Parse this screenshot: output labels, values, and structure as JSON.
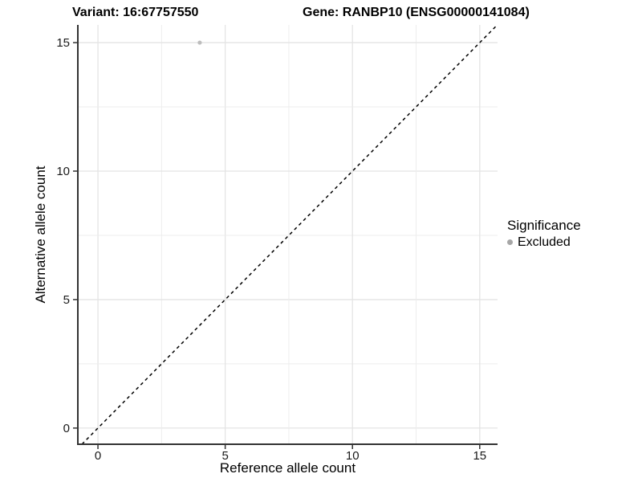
{
  "chart_data": {
    "type": "scatter",
    "title_left": "Variant: 16:67757550",
    "title_right": "Gene: RANBP10 (ENSG00000141084)",
    "xlabel": "Reference allele count",
    "ylabel": "Alternative allele count",
    "xlim": [
      -0.79,
      15.7
    ],
    "ylim": [
      -0.63,
      15.69
    ],
    "x_ticks": [
      0,
      5,
      10,
      15
    ],
    "y_ticks": [
      0,
      5,
      10,
      15
    ],
    "grid": {
      "on": true,
      "minor_step": 2.5,
      "major_step": 5,
      "min": 0,
      "max": 15
    },
    "points": [
      {
        "x": 4,
        "y": 15,
        "significance": "Excluded"
      }
    ],
    "identity_line": {
      "equation": "y = x",
      "style": "dashed"
    },
    "legend": {
      "title": "Significance",
      "position": "right",
      "items": [
        {
          "label": "Excluded",
          "color": "#a6a6a6"
        }
      ]
    },
    "colors": {
      "point": "#bdbdbd",
      "grid_major": "#e4e4e4",
      "grid_minor": "#ededed",
      "axis_line": "#333333",
      "tick_label": "#1a1a1a",
      "identity_line": "#000000"
    }
  }
}
